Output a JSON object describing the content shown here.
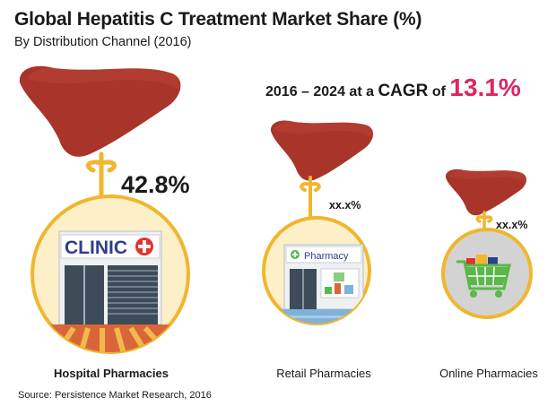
{
  "chart_data": {
    "type": "infographic",
    "title": "Global Hepatitis C Treatment Market Share (%)",
    "subtitle": "By Distribution Channel (2016)",
    "cagr": {
      "period_prefix": "2016 – 2024 at a",
      "word": "CAGR",
      "of": "of",
      "value": "13.1%"
    },
    "categories": [
      "Hospital Pharmacies",
      "Retail Pharmacies",
      "Online Pharmacies"
    ],
    "values": [
      "42.8%",
      "xx.x%",
      "xx.x%"
    ],
    "source": "Source: Persistence Market Research, 2016"
  },
  "icons": {
    "hospital": {
      "sign": "CLINIC"
    },
    "retail": {
      "sign": "Pharmacy"
    },
    "online": {
      "icon": "shopping-cart-icon"
    }
  },
  "colors": {
    "liver": "#a8342a",
    "liver_dark": "#7d2119",
    "ribbon": "#f0b62e",
    "circle_fill": "#fdf0c9",
    "circle_stroke": "#f0b62e",
    "online_fill": "#d3d3d3",
    "accent": "#e0245e",
    "cross": "#e2322e",
    "building": "#eef0f2",
    "window": "#3d4c58",
    "cart_green": "#58b947"
  }
}
